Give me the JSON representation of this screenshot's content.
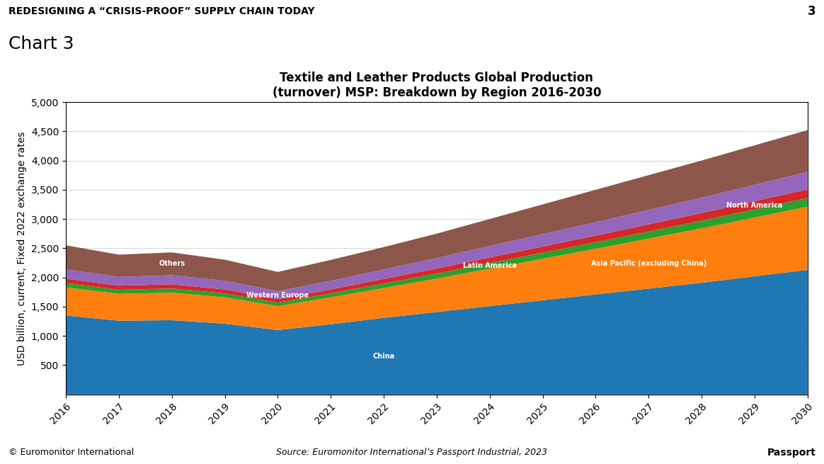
{
  "chart_data": {
    "type": "area",
    "stacked": true,
    "title": "Textile and Leather Products Global Production\n(turnover) MSP: Breakdown by Region 2016-2030",
    "ylabel": "USD billion, current, Fixed 2022 exchange rates",
    "x": [
      2016,
      2017,
      2018,
      2019,
      2020,
      2021,
      2022,
      2023,
      2024,
      2025,
      2026,
      2027,
      2028,
      2029,
      2030
    ],
    "series": [
      {
        "name": "China",
        "values": [
          1350,
          1260,
          1270,
          1210,
          1100,
          1200,
          1310,
          1410,
          1510,
          1610,
          1710,
          1810,
          1910,
          2020,
          2130
        ]
      },
      {
        "name": "Asia Pacific (excluding China)",
        "values": [
          480,
          460,
          470,
          450,
          410,
          460,
          510,
          570,
          640,
          710,
          780,
          855,
          930,
          1005,
          1080
        ]
      },
      {
        "name": "Latin America",
        "values": [
          75,
          70,
          72,
          68,
          60,
          68,
          78,
          87,
          96,
          105,
          113,
          122,
          131,
          140,
          149
        ]
      },
      {
        "name": "North America",
        "values": [
          75,
          70,
          72,
          68,
          60,
          68,
          78,
          87,
          96,
          105,
          113,
          122,
          131,
          140,
          149
        ]
      },
      {
        "name": "Western Europe",
        "values": [
          160,
          150,
          155,
          148,
          135,
          148,
          162,
          178,
          195,
          212,
          229,
          246,
          263,
          280,
          297
        ]
      },
      {
        "name": "Others",
        "values": [
          410,
          380,
          390,
          360,
          330,
          356,
          382,
          418,
          463,
          508,
          555,
          595,
          635,
          675,
          715
        ]
      }
    ],
    "xlim": [
      2016,
      2030
    ],
    "xticks": [
      2016,
      2017,
      2018,
      2019,
      2020,
      2021,
      2022,
      2023,
      2024,
      2025,
      2026,
      2027,
      2028,
      2029,
      2030
    ],
    "ylim": [
      0,
      5000
    ],
    "yticks": [
      500,
      {
        "value": 1000,
        "label": "1,000"
      },
      {
        "value": 1500,
        "label": "1,500"
      },
      {
        "value": 2000,
        "label": "2,000"
      },
      {
        "value": 2500,
        "label": "2,500"
      },
      {
        "value": 3000,
        "label": "3,000"
      },
      {
        "value": 3500,
        "label": "3,500"
      },
      {
        "value": 4000,
        "label": "4,000"
      },
      {
        "value": 4500,
        "label": "4,500"
      },
      {
        "value": 5000,
        "label": "5,000"
      }
    ],
    "grid": "y",
    "annotations": [
      "REDESIGNING A “CRISIS-PROOF” SUPPLY CHAIN TODAY",
      "3",
      "Chart 3",
      "Source: Euromonitor International’s Passport Industrial, 2023",
      "© Euromonitor International",
      "Passport"
    ]
  }
}
